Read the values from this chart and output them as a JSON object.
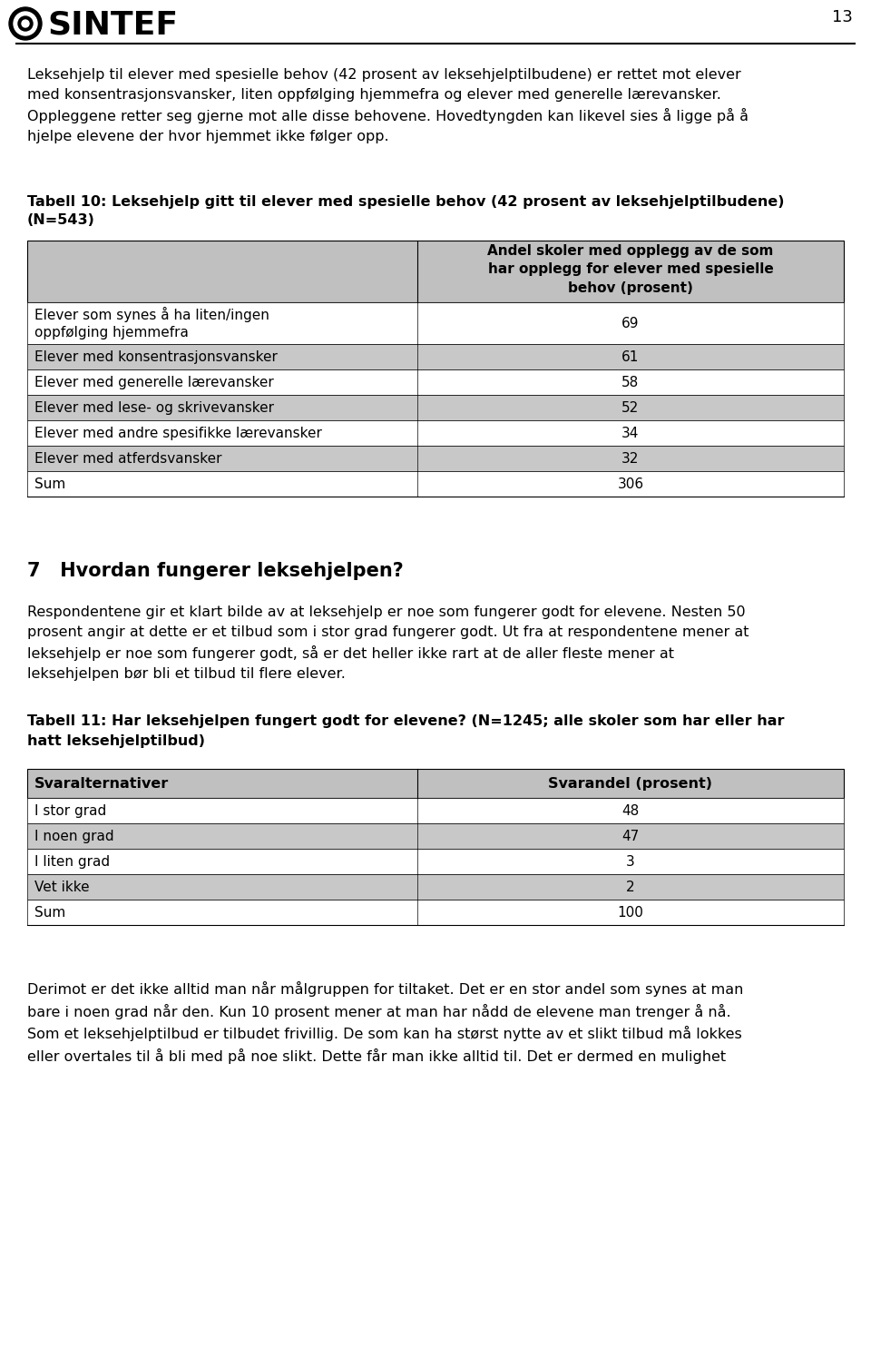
{
  "page_number": "13",
  "logo_text": "SINTEF",
  "bg_color": "#ffffff",
  "header_gray": "#c0c0c0",
  "row_gray": "#d9d9d9",
  "intro_paragraph": "Leksehjelp til elever med spesielle behov (42 prosent av leksehjelptilbudene) er rettet mot elever\nmed konsentrasjonsvansker, liten oppfølging hjemmefra og elever med generelle lærevansker.\nOppleggene retter seg gjerne mot alle disse behovene. Hovedtyngden kan likevel sies å ligge på å\nhjelpe elevene der hvor hjemmet ikke følger opp.",
  "table10_title_line1": "Tabell 10: Leksehjelp gitt til elever med spesielle behov (42 prosent av leksehjelptilbudene)",
  "table10_title_line2": "(N=543)",
  "table10_col_header_line1": "Andel skoler med opplegg av de som",
  "table10_col_header_line2": "har opplegg for elever med spesielle",
  "table10_col_header_line3": "behov (prosent)",
  "table10_rows": [
    [
      "Elever som synes å ha liten/ingen\noppfølging hjemmefra",
      "69"
    ],
    [
      "Elever med konsentrasjonsvansker",
      "61"
    ],
    [
      "Elever med generelle lærevansker",
      "58"
    ],
    [
      "Elever med lese- og skrivevansker",
      "52"
    ],
    [
      "Elever med andre spesifikke lærevansker",
      "34"
    ],
    [
      "Elever med atferdsvansker",
      "32"
    ],
    [
      "Sum",
      "306"
    ]
  ],
  "table10_row_colors": [
    "#ffffff",
    "#c8c8c8",
    "#ffffff",
    "#c8c8c8",
    "#ffffff",
    "#c8c8c8",
    "#ffffff"
  ],
  "section7_title": "7   Hvordan fungerer leksehjelpen?",
  "section7_paragraph": "Respondentene gir et klart bilde av at leksehjelp er noe som fungerer godt for elevene. Nesten 50\nprosent angir at dette er et tilbud som i stor grad fungerer godt. Ut fra at respondentene mener at\nleksehjelp er noe som fungerer godt, så er det heller ikke rart at de aller fleste mener at\nleksehjelpen bør bli et tilbud til flere elever.",
  "table11_title_line1": "Tabell 11: Har leksehjelpen fungert godt for elevene? (N=1245; alle skoler som har eller har",
  "table11_title_line2": "hatt leksehjelptilbud)",
  "table11_col1_header": "Svaralternativer",
  "table11_col2_header": "Svarandel (prosent)",
  "table11_rows": [
    [
      "I stor grad",
      "48"
    ],
    [
      "I noen grad",
      "47"
    ],
    [
      "I liten grad",
      "3"
    ],
    [
      "Vet ikke",
      "2"
    ],
    [
      "Sum",
      "100"
    ]
  ],
  "table11_row_colors": [
    "#ffffff",
    "#c8c8c8",
    "#ffffff",
    "#c8c8c8",
    "#ffffff"
  ],
  "outro_paragraph": "Derimot er det ikke alltid man når målgruppen for tiltaket. Det er en stor andel som synes at man\nbare i noen grad når den. Kun 10 prosent mener at man har nådd de elevene man trenger å nå.\nSom et leksehjelptilbud er tilbudet frivillig. De som kan ha størst nytte av et slikt tilbud må lokkes\neller overtales til å bli med på noe slikt. Dette får man ikke alltid til. Det er dermed en mulighet"
}
